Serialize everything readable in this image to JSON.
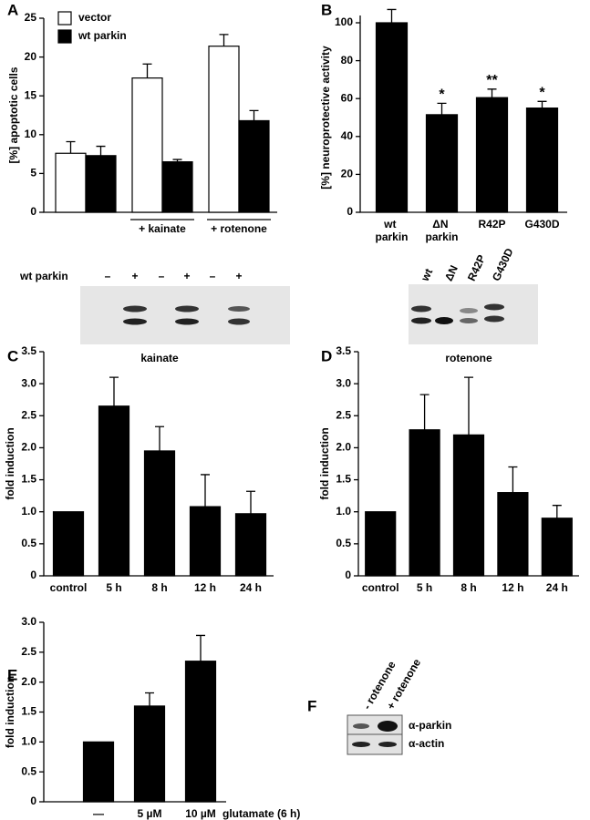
{
  "chart_data": [
    {
      "type": "bar",
      "panel": "A",
      "ylabel": "[%] apoptotic cells",
      "categories": [
        null,
        "+ kainate",
        "+ rotenone"
      ],
      "series": [
        {
          "name": "vector",
          "color": "#ffffff",
          "values": [
            7.6,
            17.3,
            21.4
          ],
          "errors": [
            1.5,
            1.8,
            1.5
          ]
        },
        {
          "name": "wt parkin",
          "color": "#000000",
          "values": [
            7.3,
            6.5,
            11.8
          ],
          "errors": [
            1.2,
            0.3,
            1.3
          ]
        }
      ],
      "ylim": [
        0,
        25
      ],
      "yticks": [
        0,
        5,
        10,
        15,
        20,
        25
      ],
      "legend": "top-left"
    },
    {
      "type": "bar",
      "panel": "B",
      "ylabel": "[%] neuroprotective activity",
      "categories": [
        "wt parkin",
        "ΔN parkin",
        "R42P",
        "G430D"
      ],
      "values": [
        100,
        51.5,
        60.5,
        55
      ],
      "errors": [
        7,
        6,
        4.5,
        3.5
      ],
      "color": "#000000",
      "annotations": [
        null,
        "*",
        "**",
        "*"
      ],
      "ylim": [
        0,
        100
      ],
      "yticks": [
        0,
        20,
        40,
        60,
        80,
        100
      ]
    },
    {
      "type": "bar",
      "panel": "C",
      "title": "kainate",
      "ylabel": "fold induction",
      "categories": [
        "control",
        "5 h",
        "8 h",
        "12 h",
        "24 h"
      ],
      "values": [
        1.0,
        2.65,
        1.95,
        1.08,
        0.97
      ],
      "errors": [
        null,
        0.45,
        0.38,
        0.5,
        0.35
      ],
      "color": "#000000",
      "ylim": [
        0,
        3.5
      ],
      "yticks": [
        0,
        0.5,
        {
          "value": 1,
          "label": "1.0"
        },
        1.5,
        {
          "value": 2,
          "label": "2.0"
        },
        2.5,
        {
          "value": 3,
          "label": "3.0"
        },
        3.5
      ]
    },
    {
      "type": "bar",
      "panel": "D",
      "title": "rotenone",
      "ylabel": "fold induction",
      "categories": [
        "control",
        "5 h",
        "8 h",
        "12 h",
        "24 h"
      ],
      "values": [
        1.0,
        2.28,
        2.2,
        1.3,
        0.9
      ],
      "errors": [
        null,
        0.55,
        0.9,
        0.4,
        0.2
      ],
      "color": "#000000",
      "ylim": [
        0,
        3.5
      ],
      "yticks": [
        0,
        0.5,
        {
          "value": 1,
          "label": "1.0"
        },
        1.5,
        {
          "value": 2,
          "label": "2.0"
        },
        2.5,
        {
          "value": 3,
          "label": "3.0"
        },
        3.5
      ]
    },
    {
      "type": "bar",
      "panel": "E",
      "ylabel": "fold induction",
      "xlabel": "glutamate (6 h)",
      "categories": [
        "—",
        "5 µM",
        "10 µM"
      ],
      "values": [
        1.0,
        1.6,
        2.35
      ],
      "errors": [
        null,
        0.22,
        0.43
      ],
      "color": "#000000",
      "ylim": [
        0,
        3
      ],
      "yticks": [
        0,
        0.5,
        {
          "value": 1,
          "label": "1.0"
        },
        1.5,
        {
          "value": 2,
          "label": "2.0"
        },
        2.5,
        {
          "value": 3,
          "label": "3.0"
        }
      ]
    }
  ],
  "blot_a": {
    "row_label": "wt parkin",
    "lanes": [
      "–",
      "+",
      "–",
      "+",
      "–",
      "+"
    ]
  },
  "blot_b": {
    "lanes": [
      "wt",
      "ΔN",
      "R42P",
      "G430D"
    ]
  },
  "panel_f": {
    "panel": "F",
    "lanes": [
      "- rotenone",
      "+ rotenone"
    ],
    "rows": [
      "α-parkin",
      "α-actin"
    ]
  }
}
